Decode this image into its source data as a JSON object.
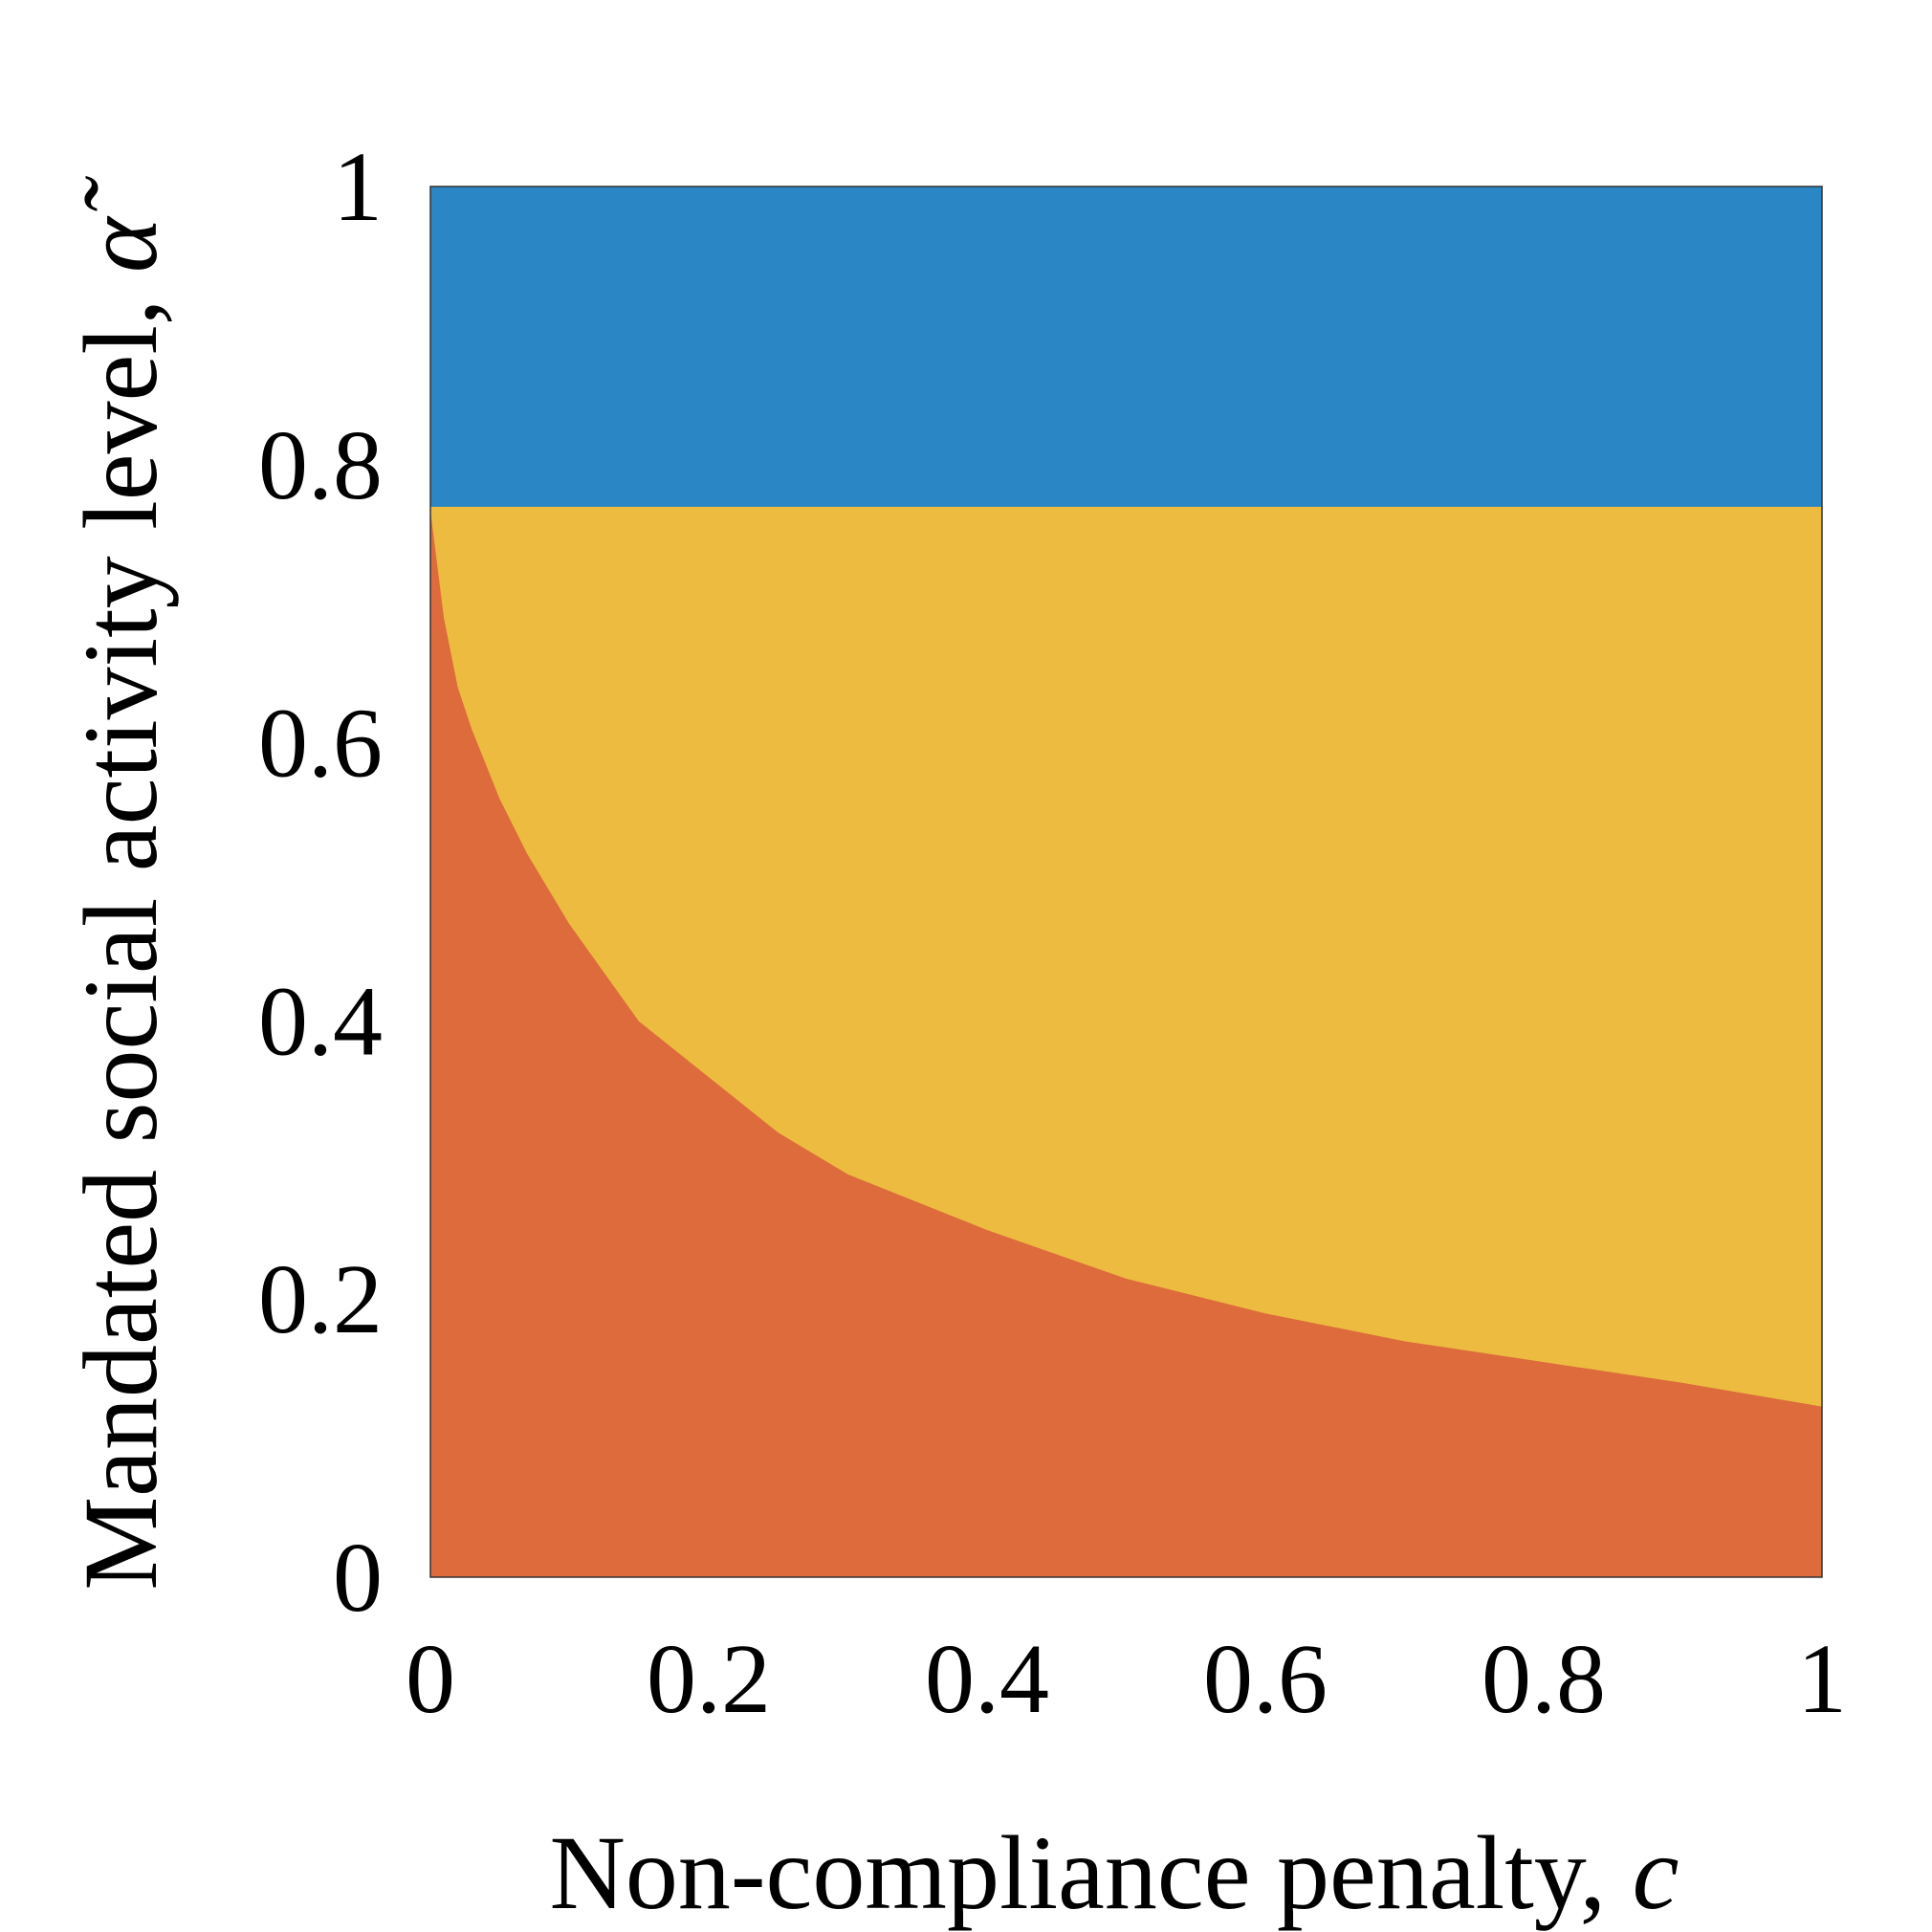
{
  "chart_data": {
    "type": "area",
    "xlabel": "Non-compliance penalty, ",
    "xlabel_var": "c",
    "ylabel": "Mandated social activity level, ",
    "ylabel_var": "α̃",
    "xlim": [
      0,
      1
    ],
    "ylim": [
      0,
      1
    ],
    "xticks": [
      0,
      0.2,
      0.4,
      0.6,
      0.8,
      1
    ],
    "xtick_labels": [
      "0",
      "0.2",
      "0.4",
      "0.6",
      "0.8",
      "1"
    ],
    "yticks": [
      0,
      0.2,
      0.4,
      0.6,
      0.8,
      1
    ],
    "ytick_labels": [
      "0",
      "0.2",
      "0.4",
      "0.6",
      "0.8",
      "1"
    ],
    "grid": false,
    "regions": [
      {
        "color": "#DD6B3C",
        "lower": "axis",
        "upper": "boundary"
      },
      {
        "color": "#EDBB40",
        "lower": "boundary",
        "upper": 0.77
      },
      {
        "color": "#2A86C4",
        "lower": 0.77,
        "upper": 1
      }
    ],
    "boundary": {
      "x": [
        0,
        0.005,
        0.01,
        0.02,
        0.03,
        0.05,
        0.07,
        0.1,
        0.15,
        0.2,
        0.25,
        0.3,
        0.4,
        0.5,
        0.6,
        0.7,
        0.8,
        0.9,
        1.0
      ],
      "y": [
        0.77,
        0.73,
        0.69,
        0.64,
        0.61,
        0.56,
        0.52,
        0.47,
        0.4,
        0.36,
        0.32,
        0.29,
        0.25,
        0.215,
        0.19,
        0.17,
        0.155,
        0.14,
        0.123
      ]
    },
    "top_boundary_y": 0.77
  }
}
